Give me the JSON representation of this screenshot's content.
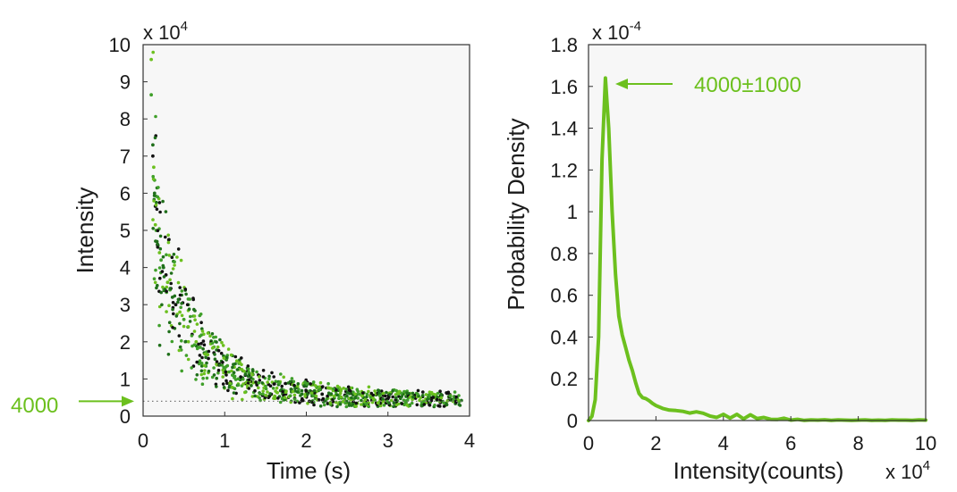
{
  "colors": {
    "accent_green": "#6cc01e",
    "dark_green": "#1f6f1a",
    "mid_green": "#3f9f2a",
    "black_point": "#111111",
    "plot_bg": "#f7f7f7",
    "frame": "#333333",
    "ref_line": "#777777"
  },
  "chart_data": [
    {
      "type": "scatter",
      "title": "",
      "xlabel": "Time (s)",
      "ylabel": "Intensity",
      "y_multiplier_label": {
        "prefix": "x 10",
        "exp": "4"
      },
      "xlim": [
        0,
        4
      ],
      "ylim": [
        0,
        100000
      ],
      "xticks": [
        "0",
        "1",
        "2",
        "3",
        "4"
      ],
      "yticks": [
        "0",
        "1",
        "2",
        "3",
        "4",
        "5",
        "6",
        "7",
        "8",
        "9",
        "10"
      ],
      "grid": false,
      "reference_line": {
        "y": 4000,
        "style": "dotted"
      },
      "annotation": {
        "text": "4000",
        "arrow": "right",
        "points_to_y": 4000
      },
      "series": [
        {
          "color": "mixed green and black",
          "points": [
            [
              0.1,
              96000
            ],
            [
              0.1,
              86500
            ],
            [
              0.12,
              73000
            ],
            [
              0.12,
              70000
            ],
            [
              0.13,
              67000
            ],
            [
              0.14,
              63500
            ],
            [
              0.14,
              60000
            ],
            [
              0.15,
              56500
            ],
            [
              0.15,
              51500
            ],
            [
              0.16,
              50000
            ],
            [
              0.17,
              47000
            ],
            [
              0.18,
              45500
            ],
            [
              0.2,
              44000
            ],
            [
              0.22,
              42000
            ],
            [
              0.25,
              40000
            ],
            [
              0.28,
              38000
            ],
            [
              0.3,
              36000
            ],
            [
              0.33,
              34000
            ],
            [
              0.36,
              32000
            ],
            [
              0.4,
              30000
            ],
            [
              0.45,
              28000
            ],
            [
              0.5,
              26000
            ],
            [
              0.55,
              24000
            ],
            [
              0.6,
              22000
            ],
            [
              0.65,
              20000
            ],
            [
              0.7,
              18500
            ],
            [
              0.75,
              17000
            ],
            [
              0.8,
              15500
            ],
            [
              0.9,
              14000
            ],
            [
              1.0,
              12500
            ],
            [
              1.1,
              11000
            ],
            [
              1.2,
              10000
            ],
            [
              1.35,
              9000
            ],
            [
              1.5,
              8000
            ],
            [
              1.7,
              7200
            ],
            [
              1.9,
              6500
            ],
            [
              2.1,
              6000
            ],
            [
              2.4,
              5500
            ],
            [
              2.7,
              5000
            ],
            [
              3.0,
              4700
            ],
            [
              3.3,
              4500
            ],
            [
              3.6,
              4300
            ],
            [
              3.9,
              4200
            ]
          ]
        }
      ]
    },
    {
      "type": "line",
      "title": "",
      "xlabel": "Intensity(counts)",
      "ylabel": "Probability Density",
      "x_multiplier_label": {
        "prefix": "x 10",
        "exp": "4"
      },
      "y_multiplier_label": {
        "prefix": "x 10",
        "exp": "-4"
      },
      "xlim": [
        0,
        100000
      ],
      "ylim": [
        0,
        0.00018
      ],
      "xticks": [
        "0",
        "2",
        "4",
        "6",
        "8",
        "10"
      ],
      "yticks": [
        "0",
        "0.2",
        "0.4",
        "0.6",
        "0.8",
        "1",
        "1.2",
        "1.4",
        "1.6",
        "1.8"
      ],
      "grid": false,
      "annotation": {
        "text": "4000±1000",
        "arrow": "left",
        "points_to": [
          4000,
          0.000164
        ]
      },
      "series": [
        {
          "color": "#6cc01e",
          "x": [
            0,
            1000,
            2000,
            3000,
            4000,
            5000,
            6000,
            7000,
            8000,
            9000,
            10000,
            11000,
            12000,
            13000,
            14000,
            15000,
            16000,
            17000,
            18000,
            19000,
            20000,
            22000,
            24000,
            26000,
            28000,
            30000,
            32000,
            34000,
            36000,
            38000,
            40000,
            42000,
            44000,
            46000,
            48000,
            50000,
            52000,
            54000,
            56000,
            58000,
            60000,
            62000,
            64000,
            66000,
            68000,
            70000,
            72000,
            74000,
            76000,
            78000,
            80000,
            82000,
            84000,
            86000,
            88000,
            90000,
            92000,
            94000,
            96000,
            98000,
            100000
          ],
          "y": [
            0,
            2e-06,
            1e-05,
            4e-05,
            0.000125,
            0.000164,
            0.00014,
            0.0001,
            7e-05,
            5e-05,
            4.1e-05,
            3.5e-05,
            2.9e-05,
            2.4e-05,
            1.8e-05,
            1.3e-05,
            1.1e-05,
            1.05e-05,
            9.5e-06,
            8.2e-06,
            7.2e-06,
            5.8e-06,
            5e-06,
            4.8e-06,
            4.4e-06,
            3.6e-06,
            4.2e-06,
            3.5e-06,
            2.2e-06,
            1.5e-06,
            3e-06,
            1.2e-06,
            3e-06,
            8e-07,
            2.8e-06,
            1e-06,
            1.5e-06,
            6e-07,
            5e-07,
            1.1e-06,
            2e-07,
            6e-07,
            1e-07,
            3e-07,
            2e-07,
            4e-07,
            1e-07,
            3e-07,
            2e-07,
            1e-07,
            2e-07,
            3e-07,
            1e-07,
            2e-07,
            1e-07,
            3e-07,
            2e-07,
            2e-07,
            1e-07,
            3e-07,
            2e-07
          ]
        }
      ]
    }
  ]
}
